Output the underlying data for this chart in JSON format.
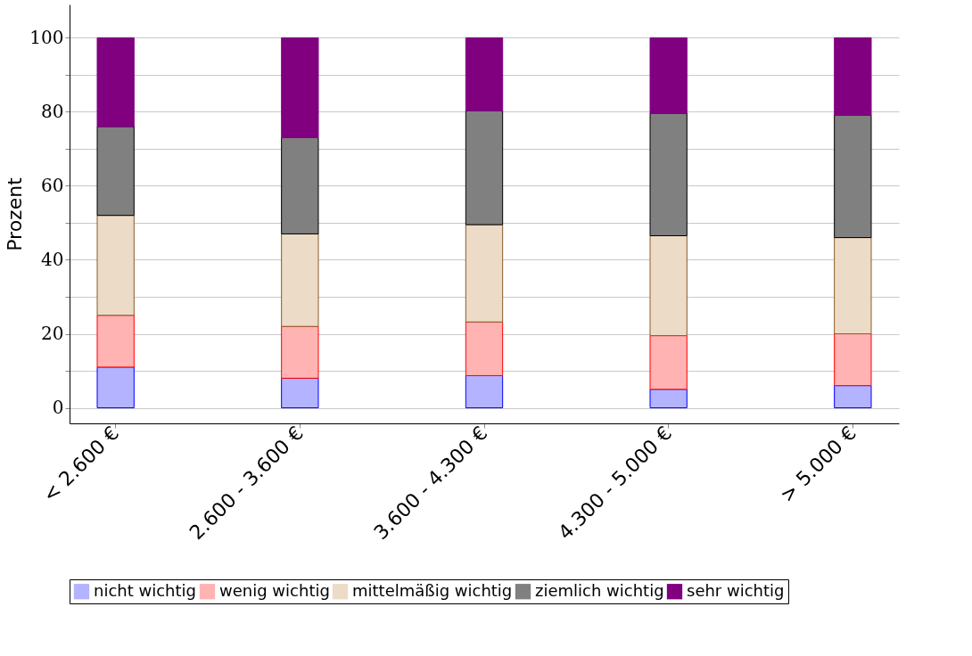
{
  "chart_data": {
    "type": "bar",
    "stacked": true,
    "ylabel": "Prozent",
    "categories": [
      "< 2.600 €",
      "2.600 - 3.600 €",
      "3.600 - 4.300 €",
      "4.300 - 5.000 €",
      "> 5.000 €"
    ],
    "series": [
      {
        "name": "nicht wichtig",
        "color": "#b3b3ff",
        "values": [
          11,
          8,
          8.7,
          5,
          6
        ]
      },
      {
        "name": "wenig wichtig",
        "color": "#ffb3b3",
        "values": [
          14,
          14,
          14.5,
          14.5,
          14
        ]
      },
      {
        "name": "mittelmäßig wichtig",
        "color": "#ecdcc7",
        "values": [
          27,
          25,
          26.3,
          27,
          26
        ]
      },
      {
        "name": "ziemlich wichtig",
        "color": "#808080",
        "values": [
          24,
          26,
          30.8,
          33.1,
          33.1
        ]
      },
      {
        "name": "sehr wichtig",
        "color": "#800080",
        "values": [
          24,
          27,
          19.7,
          20.4,
          20.9
        ]
      }
    ],
    "ylim": [
      -4.2,
      109
    ],
    "yticks": [
      0,
      {
        "value": 10,
        "label": null
      },
      20,
      {
        "value": 30,
        "label": null
      },
      40,
      {
        "value": 50,
        "label": null
      },
      60,
      {
        "value": 70,
        "label": null
      },
      80,
      {
        "value": 90,
        "label": null
      },
      100
    ],
    "grid": "y",
    "legend": "bottom"
  }
}
